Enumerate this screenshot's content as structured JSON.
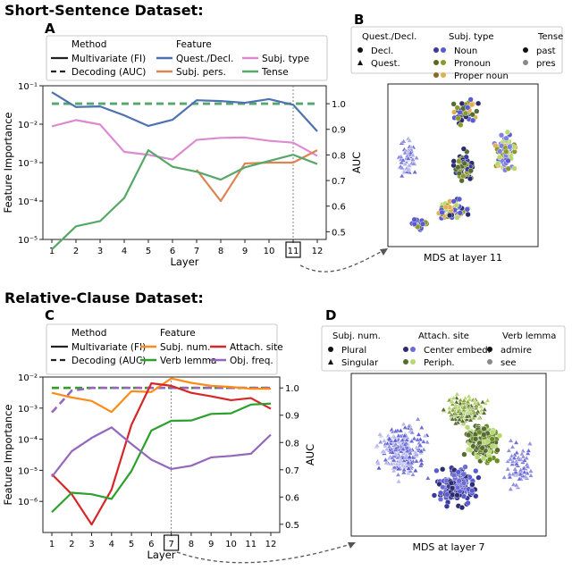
{
  "sections": [
    {
      "title": "Short-Sentence Dataset:"
    },
    {
      "title": "Relative-Clause Dataset:"
    }
  ],
  "colors": {
    "quest_decl": "#4c72b0",
    "subj_type": "#dd8ad3",
    "subj_pers": "#dd8452",
    "tense": "#55a868",
    "subj_num": "#ff8c1a",
    "attach_site": "#d62728",
    "verb_lemma": "#2ca02c",
    "obj_freq": "#9467bd",
    "noun": "#5a5ad2",
    "pronoun": "#8a9a2a",
    "proper_noun": "#e0b050",
    "center_embed": "#6c6cd8",
    "periph": "#b6d870"
  },
  "chart_data": [
    {
      "panel": "A",
      "type": "line",
      "x": [
        1,
        2,
        3,
        4,
        5,
        6,
        7,
        8,
        9,
        10,
        11,
        12
      ],
      "xlabel": "Layer",
      "ylabel": "Feature Importance",
      "ylabel_right": "AUC",
      "yscale": "log",
      "ylim": [
        1e-05,
        0.1
      ],
      "y_ticks": [
        "10⁻⁵",
        "10⁻⁴",
        "10⁻³",
        "10⁻²",
        "10⁻¹"
      ],
      "y2lim": [
        0.47,
        1.07
      ],
      "y2_ticks": [
        "0.5",
        "0.6",
        "0.7",
        "0.8",
        "0.9",
        "1.0"
      ],
      "highlight_layer": 11,
      "legend": {
        "method_title": "Method",
        "feature_title": "Feature",
        "method": [
          "Multivariate (FI)",
          "Decoding (AUC)"
        ],
        "feature": [
          "Quest./Decl.",
          "Subj. type",
          "Subj. pers.",
          "Tense"
        ]
      },
      "series": [
        {
          "name": "Quest./Decl.",
          "color": "#4c72b0",
          "values": [
            0.068,
            0.028,
            0.029,
            0.017,
            0.009,
            0.013,
            0.042,
            0.04,
            0.036,
            0.045,
            0.032,
            0.0065
          ]
        },
        {
          "name": "Subj. type",
          "color": "#dd8ad3",
          "values": [
            0.0088,
            0.0128,
            0.0098,
            0.0019,
            0.0016,
            0.0012,
            0.0039,
            0.0044,
            0.0045,
            0.0037,
            0.0033,
            0.0015
          ]
        },
        {
          "name": "Subj. pers.",
          "color": "#dd8452",
          "values": [
            null,
            null,
            null,
            null,
            null,
            null,
            0.00065,
            0.0001,
            0.00095,
            0.001,
            0.001,
            0.0021
          ]
        },
        {
          "name": "Tense",
          "color": "#55a868",
          "values": [
            5.5e-06,
            2.2e-05,
            3e-05,
            0.00012,
            0.0021,
            0.00078,
            0.00058,
            0.00036,
            0.00075,
            0.0011,
            0.0016,
            0.00092
          ]
        }
      ],
      "decoding": [
        {
          "name": "Quest./Decl.",
          "color": "#4c72b0",
          "values": [
            1.0,
            1.0,
            1.0,
            1.0,
            1.0,
            1.0,
            1.0,
            1.0,
            1.0,
            1.0,
            1.0,
            1.0
          ]
        },
        {
          "name": "Tense",
          "color": "#55a868",
          "values": [
            1.0,
            1.0,
            1.0,
            1.0,
            1.0,
            1.0,
            1.0,
            1.0,
            1.0,
            1.0,
            1.0,
            1.0
          ]
        }
      ]
    },
    {
      "panel": "C",
      "type": "line",
      "x": [
        1,
        2,
        3,
        4,
        5,
        6,
        7,
        8,
        9,
        10,
        11,
        12
      ],
      "xlabel": "Layer",
      "ylabel": "Feature Importance",
      "ylabel_right": "AUC",
      "yscale": "log",
      "ylim": [
        1e-07,
        0.01
      ],
      "y_ticks": [
        "10⁻⁶",
        "10⁻⁵",
        "10⁻⁴",
        "10⁻³",
        "10⁻²"
      ],
      "y2lim": [
        0.47,
        1.04
      ],
      "y2_ticks": [
        "0.5",
        "0.6",
        "0.7",
        "0.8",
        "0.9",
        "1.0"
      ],
      "highlight_layer": 7,
      "legend": {
        "method_title": "Method",
        "feature_title": "Feature",
        "method": [
          "Multivariate (FI)",
          "Decoding (AUC)"
        ],
        "feature": [
          "Subj. num.",
          "Attach. site",
          "Verb lemma",
          "Obj. freq."
        ]
      },
      "series": [
        {
          "name": "Subj. num.",
          "color": "#ff8c1a",
          "values": [
            0.0031,
            0.0022,
            0.0017,
            0.00075,
            0.0035,
            0.0033,
            0.009,
            0.0065,
            0.0052,
            0.0048,
            0.0042,
            0.0042
          ]
        },
        {
          "name": "Attach. site",
          "color": "#d62728",
          "values": [
            7.5e-06,
            1.7e-06,
            1.8e-07,
            2.4e-06,
            0.00029,
            0.0063,
            0.0052,
            0.0031,
            0.0024,
            0.0018,
            0.0021,
            0.00095
          ]
        },
        {
          "name": "Verb lemma",
          "color": "#2ca02c",
          "values": [
            4.5e-07,
            1.9e-06,
            1.7e-06,
            1.2e-06,
            9.5e-06,
            0.00019,
            0.00039,
            0.0004,
            0.00065,
            0.00068,
            0.0013,
            0.0014
          ]
        },
        {
          "name": "Obj. freq.",
          "color": "#9467bd",
          "values": [
            6.2e-06,
            4.1e-05,
            0.00011,
            0.00024,
            7e-05,
            2.2e-05,
            1.1e-05,
            1.4e-05,
            2.6e-05,
            2.9e-05,
            3.4e-05,
            0.00014
          ]
        }
      ],
      "decoding": [
        {
          "name": "Subj. num.",
          "color": "#ff8c1a",
          "values": [
            1.0,
            1.0,
            1.0,
            1.0,
            1.0,
            1.0,
            1.0,
            1.0,
            1.0,
            1.0,
            1.0,
            1.0
          ]
        },
        {
          "name": "Verb lemma",
          "color": "#2ca02c",
          "values": [
            1.0,
            1.0,
            1.0,
            1.0,
            1.0,
            1.0,
            1.0,
            1.0,
            1.0,
            1.0,
            1.0,
            1.0
          ]
        },
        {
          "name": "Obj. freq.",
          "color": "#9467bd",
          "values": [
            0.91,
            0.99,
            1.0,
            1.0,
            1.0,
            1.0,
            1.0,
            1.0,
            1.0,
            1.0,
            1.0,
            1.0
          ]
        }
      ]
    },
    {
      "panel": "B",
      "type": "scatter",
      "title": "MDS at layer 11",
      "legend": {
        "groups": [
          {
            "title": "Quest./Decl.",
            "items": [
              "Decl.",
              "Quest."
            ]
          },
          {
            "title": "Subj. type",
            "items": [
              "Noun",
              "Pronoun",
              "Proper noun"
            ]
          },
          {
            "title": "Tense",
            "items": [
              "past",
              "pres"
            ]
          }
        ]
      }
    },
    {
      "panel": "D",
      "type": "scatter",
      "title": "MDS at layer 7",
      "legend": {
        "groups": [
          {
            "title": "Subj. num.",
            "items": [
              "Plural",
              "Singular"
            ]
          },
          {
            "title": "Attach. site",
            "items": [
              "Center embed.",
              "Periph."
            ]
          },
          {
            "title": "Verb lemma",
            "items": [
              "admire",
              "see"
            ]
          }
        ]
      }
    }
  ]
}
